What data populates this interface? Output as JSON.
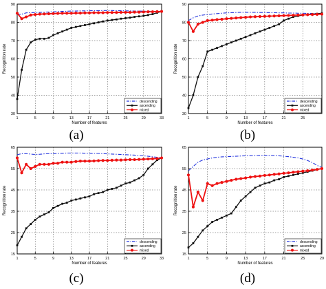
{
  "chart_data": [
    {
      "type": "line",
      "panel": "(a)",
      "xlabel": "Number of features",
      "ylabel": "Recognition rate",
      "xlim": [
        1,
        33
      ],
      "ylim": [
        30,
        90
      ],
      "xticks": [
        1,
        5,
        9,
        13,
        17,
        21,
        25,
        29,
        33
      ],
      "yticks": [
        30,
        40,
        50,
        60,
        70,
        80,
        90
      ],
      "grid": true,
      "legend": "bottom-right",
      "x": [
        1,
        2,
        3,
        4,
        5,
        6,
        7,
        8,
        9,
        10,
        11,
        12,
        13,
        14,
        15,
        16,
        17,
        18,
        19,
        20,
        21,
        22,
        23,
        24,
        25,
        26,
        27,
        28,
        29,
        30,
        31,
        32,
        33
      ],
      "series": [
        {
          "name": "descending",
          "color": "#2233dd",
          "style": "dashdot",
          "values": [
            84.5,
            84.5,
            85.2,
            85.3,
            85.4,
            85.5,
            85.6,
            85.7,
            85.8,
            85.9,
            86.0,
            86.1,
            86.2,
            86.2,
            86.3,
            86.3,
            86.4,
            86.4,
            86.4,
            86.5,
            86.5,
            86.5,
            86.4,
            86.4,
            86.3,
            86.3,
            86.2,
            86.2,
            86.1,
            86.1,
            86.0,
            86.0,
            86.0
          ]
        },
        {
          "name": "ascending",
          "color": "#111111",
          "style": "solid-square",
          "values": [
            38,
            54,
            65,
            69,
            70.5,
            71,
            71,
            71.5,
            73,
            74,
            75,
            76,
            77,
            77.5,
            78,
            78.5,
            79,
            79.5,
            80,
            80.5,
            81,
            81.3,
            81.6,
            82,
            82.3,
            82.6,
            83,
            83.3,
            83.6,
            84,
            84.5,
            85.3,
            86
          ]
        },
        {
          "name": "mixed",
          "color": "#ee1111",
          "style": "solid-circle",
          "values": [
            85,
            82,
            83,
            84,
            84.3,
            84.5,
            84.6,
            84.7,
            84.8,
            84.9,
            85,
            85,
            85,
            85.1,
            85.1,
            85.2,
            85.2,
            85.3,
            85.3,
            85.3,
            85.4,
            85.4,
            85.4,
            85.5,
            85.5,
            85.5,
            85.6,
            85.6,
            85.7,
            85.8,
            85.8,
            85.9,
            86
          ]
        }
      ]
    },
    {
      "type": "line",
      "panel": "(b)",
      "xlabel": "Number of features",
      "ylabel": "Recognition rate",
      "xlim": [
        1,
        29
      ],
      "ylim": [
        30,
        90
      ],
      "xticks": [
        1,
        5,
        9,
        13,
        17,
        21,
        25
      ],
      "yticks": [
        30,
        40,
        50,
        60,
        70,
        80,
        90
      ],
      "grid": true,
      "legend": "bottom-right",
      "x": [
        1,
        2,
        3,
        4,
        5,
        6,
        7,
        8,
        9,
        10,
        11,
        12,
        13,
        14,
        15,
        16,
        17,
        18,
        19,
        20,
        21,
        22,
        23,
        24,
        25,
        26,
        27,
        28,
        29
      ],
      "series": [
        {
          "name": "descending",
          "color": "#2233dd",
          "style": "dashdot",
          "values": [
            81,
            82.5,
            83.5,
            84,
            84.3,
            84.6,
            84.8,
            85,
            85.2,
            85.3,
            85.4,
            85.5,
            85.5,
            85.5,
            85.5,
            85.4,
            85.4,
            85.3,
            85.3,
            85.2,
            85.2,
            85.1,
            85.1,
            85,
            85,
            84.9,
            84.9,
            84.8,
            84.8
          ]
        },
        {
          "name": "ascending",
          "color": "#111111",
          "style": "solid-square",
          "values": [
            33,
            40,
            50,
            56,
            64,
            65,
            66,
            67,
            68,
            69,
            70,
            71,
            72,
            73,
            74,
            75,
            76,
            77,
            78,
            79,
            81,
            82,
            83,
            83.5,
            84,
            84.3,
            84.5,
            84.7,
            85
          ]
        },
        {
          "name": "mixed",
          "color": "#ee1111",
          "style": "solid-circle",
          "values": [
            80,
            75,
            79,
            80,
            81,
            81.2,
            81.5,
            81.7,
            82,
            82.2,
            82.4,
            82.6,
            82.8,
            83,
            83.1,
            83.2,
            83.3,
            83.4,
            83.5,
            83.6,
            83.7,
            83.8,
            83.9,
            84,
            84.1,
            84.2,
            84.3,
            84.4,
            84.5
          ]
        }
      ]
    },
    {
      "type": "line",
      "panel": "(c)",
      "xlabel": "Number of features",
      "ylabel": "Recognition rate",
      "xlim": [
        1,
        33
      ],
      "ylim": [
        15,
        65
      ],
      "xticks": [
        1,
        5,
        9,
        13,
        17,
        21,
        25,
        29,
        33
      ],
      "yticks": [
        15,
        25,
        35,
        45,
        55,
        65
      ],
      "grid": true,
      "legend": "bottom-right",
      "x": [
        1,
        2,
        3,
        4,
        5,
        6,
        7,
        8,
        9,
        10,
        11,
        12,
        13,
        14,
        15,
        16,
        17,
        18,
        19,
        20,
        21,
        22,
        23,
        24,
        25,
        26,
        27,
        28,
        29,
        30,
        31,
        32,
        33
      ],
      "series": [
        {
          "name": "descending",
          "color": "#2233dd",
          "style": "dashdot",
          "values": [
            61.5,
            62,
            62,
            61.8,
            61.6,
            61.7,
            61.9,
            62,
            62,
            62.1,
            62.2,
            62.3,
            62.3,
            62.3,
            62.3,
            62.2,
            62.2,
            62.1,
            62.1,
            62,
            61.9,
            61.8,
            61.7,
            61.6,
            61.5,
            61.4,
            61.3,
            61.1,
            61,
            60.8,
            60.5,
            60.3,
            60
          ]
        },
        {
          "name": "ascending",
          "color": "#111111",
          "style": "solid-square",
          "values": [
            19,
            23,
            27,
            29,
            31,
            32.5,
            33.5,
            34.5,
            36.5,
            37.5,
            38.5,
            39,
            40,
            40.5,
            41,
            41.5,
            42,
            43,
            43.5,
            44,
            45,
            45.5,
            46,
            47,
            48,
            48.5,
            49.5,
            50.5,
            52,
            55,
            57,
            59,
            60
          ]
        },
        {
          "name": "mixed",
          "color": "#ee1111",
          "style": "solid-circle",
          "values": [
            60,
            53,
            57,
            55,
            56,
            57,
            57,
            57,
            57.5,
            57.5,
            58,
            58,
            58,
            58.3,
            58.5,
            58.5,
            58.5,
            58.6,
            58.7,
            58.8,
            58.8,
            58.9,
            59,
            59,
            59.1,
            59.2,
            59.2,
            59.3,
            59.4,
            59.5,
            59.6,
            59.7,
            60
          ]
        }
      ]
    },
    {
      "type": "line",
      "panel": "(d)",
      "xlabel": "Number of features",
      "ylabel": "Recognition rate",
      "xlim": [
        1,
        29
      ],
      "ylim": [
        15,
        65
      ],
      "xticks": [
        1,
        5,
        9,
        13,
        17,
        21,
        25,
        29
      ],
      "yticks": [
        15,
        25,
        35,
        45,
        55,
        65
      ],
      "grid": true,
      "legend": "bottom-right",
      "x": [
        1,
        2,
        3,
        4,
        5,
        6,
        7,
        8,
        9,
        10,
        11,
        12,
        13,
        14,
        15,
        16,
        17,
        18,
        19,
        20,
        21,
        22,
        23,
        24,
        25,
        26,
        27,
        28,
        29
      ],
      "series": [
        {
          "name": "descending",
          "color": "#2233dd",
          "style": "dashdot",
          "values": [
            54,
            56,
            58,
            59,
            59.5,
            60,
            60.3,
            60.5,
            60.6,
            60.7,
            60.8,
            60.9,
            61,
            61,
            61.1,
            61.2,
            61.2,
            61.2,
            61.1,
            61,
            60.8,
            60.6,
            60.3,
            60,
            59.5,
            58.8,
            57.8,
            56.5,
            55.5
          ]
        },
        {
          "name": "ascending",
          "color": "#111111",
          "style": "solid-square",
          "values": [
            18,
            20,
            23,
            26,
            28,
            30,
            31,
            32,
            33,
            34,
            37,
            40,
            42,
            44,
            46,
            47,
            48,
            48.5,
            49.5,
            50,
            51,
            51.5,
            52,
            52.5,
            53,
            53.5,
            54,
            54.5,
            55
          ]
        },
        {
          "name": "mixed",
          "color": "#ee1111",
          "style": "solid-circle",
          "values": [
            52,
            37,
            44,
            40,
            48,
            47,
            48,
            48.5,
            49,
            49.5,
            50,
            50.3,
            50.6,
            51,
            51.3,
            51.5,
            51.8,
            52,
            52.3,
            52.5,
            52.8,
            53,
            53.3,
            53.5,
            53.8,
            54,
            54.3,
            54.6,
            55
          ]
        }
      ]
    }
  ]
}
